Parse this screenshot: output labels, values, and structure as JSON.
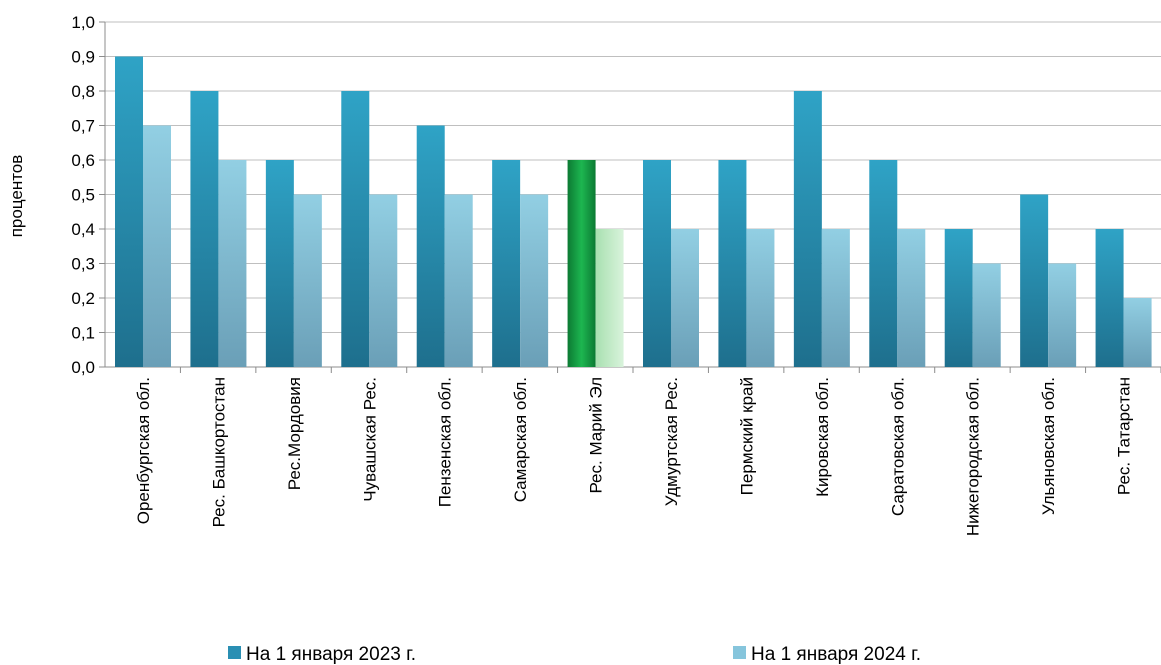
{
  "chart_data": {
    "type": "bar",
    "ylabel": "процентов",
    "ylim": [
      0,
      1.0
    ],
    "yticks": [
      "0,0",
      "0,1",
      "0,2",
      "0,3",
      "0,4",
      "0,5",
      "0,6",
      "0,7",
      "0,8",
      "0,9",
      "1,0"
    ],
    "categories": [
      "Оренбургская обл.",
      "Рес. Башкортостан",
      "Рес.Мордовия",
      "Чувашская Рес.",
      "Пензенская обл.",
      "Самарская обл.",
      "Рес. Марий Эл",
      "Удмуртская Рес.",
      "Пермский край",
      "Кировская обл.",
      "Саратовская обл.",
      "Нижегородская обл.",
      "Ульяновская обл.",
      "Рес. Татарстан"
    ],
    "series": [
      {
        "name": "На 1 января 2023 г.",
        "values": [
          0.9,
          0.8,
          0.6,
          0.8,
          0.7,
          0.6,
          0.6,
          0.6,
          0.6,
          0.8,
          0.6,
          0.4,
          0.5,
          0.4
        ]
      },
      {
        "name": "На 1 января 2024 г.",
        "values": [
          0.7,
          0.6,
          0.5,
          0.5,
          0.5,
          0.5,
          0.4,
          0.4,
          0.4,
          0.4,
          0.4,
          0.3,
          0.3,
          0.2
        ]
      }
    ],
    "highlight_category": "Рес. Марий Эл",
    "legend": "bottom",
    "grid": "horizontal",
    "colors": {
      "series1": "#2e9ec0",
      "series2": "#8ecbe0",
      "highlight1": "#17a84a",
      "highlight2": "#bfe9c4"
    }
  }
}
